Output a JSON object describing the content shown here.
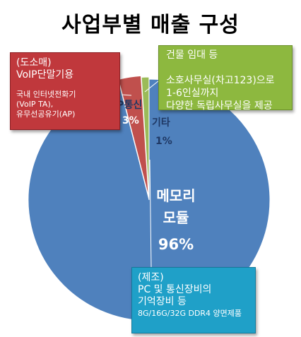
{
  "chart_data": {
    "type": "pie",
    "title": "사업부별 매출 구성",
    "slices": [
      {
        "name": "메모리 모듈",
        "label_lines": [
          "메모리",
          "모듈"
        ],
        "value": 96,
        "value_label": "96%",
        "color": "#4f81bd"
      },
      {
        "name": "IP통신",
        "label_lines": [
          "IP통신"
        ],
        "value": 3,
        "value_label": "3%",
        "color": "#c0504d"
      },
      {
        "name": "기타",
        "label_lines": [
          "기타"
        ],
        "value": 1,
        "value_label": "1%",
        "color": "#9bbb59"
      }
    ]
  },
  "callouts": {
    "distribution": {
      "lines": [
        "(도소매)",
        "VoIP단말기용"
      ],
      "small_lines": [
        "국내 인터넷전화기",
        "(VoIP  TA),",
        "유무선공유기(AP)"
      ],
      "color": "#c0383c"
    },
    "building": {
      "lines": [
        "건물 임대 등",
        "",
        "소호사무실(차고123)으로",
        "1-6인실까지",
        "다양한 독립사무실을 제공"
      ],
      "color": "#8db83f"
    },
    "manufacture": {
      "lines": [
        "(제조)",
        "PC 및 통신장비의",
        "기억장비 등"
      ],
      "small_lines": [
        "8G/16G/32G  DDR4  양면제품"
      ],
      "color": "#1fa0c8"
    }
  }
}
